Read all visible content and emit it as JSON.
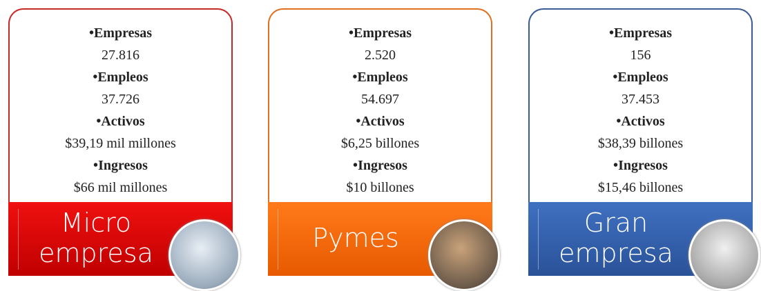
{
  "cards": [
    {
      "items": [
        {
          "name": "Empresas",
          "value": "27.816"
        },
        {
          "name": "Empleos",
          "value": "37.726"
        },
        {
          "name": "Activos",
          "value": "$39,19 mil millones"
        },
        {
          "name": "Ingresos",
          "value": "$66 mil millones"
        }
      ],
      "label": [
        "Micro",
        "empresa"
      ]
    },
    {
      "items": [
        {
          "name": "Empresas",
          "value": "2.520"
        },
        {
          "name": "Empleos",
          "value": "54.697"
        },
        {
          "name": "Activos",
          "value": "$6,25 billones"
        },
        {
          "name": "Ingresos",
          "value": "$10 billones"
        }
      ],
      "label": [
        "Pymes"
      ]
    },
    {
      "items": [
        {
          "name": "Empresas",
          "value": "156"
        },
        {
          "name": "Empleos",
          "value": "37.453"
        },
        {
          "name": "Activos",
          "value": "$38,39 billones"
        },
        {
          "name": "Ingresos",
          "value": "$15,46 billones"
        }
      ],
      "label": [
        "Gran",
        "empresa"
      ]
    }
  ]
}
